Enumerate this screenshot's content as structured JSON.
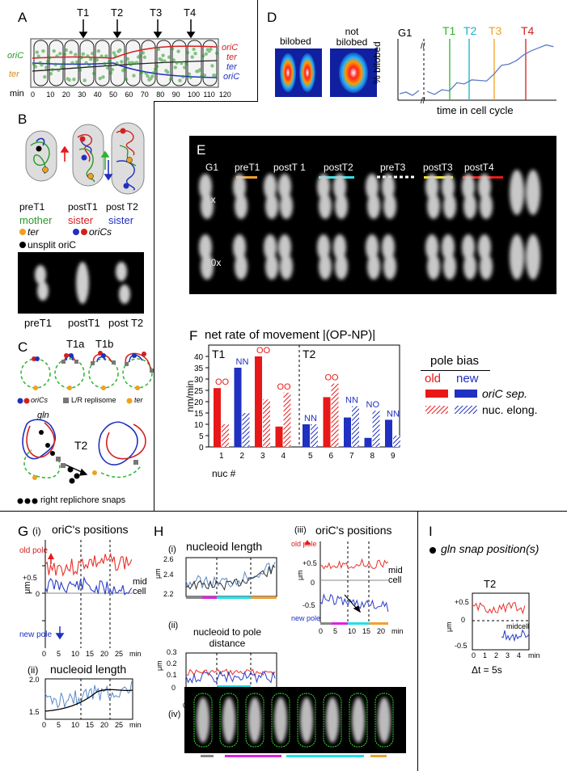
{
  "panels": {
    "A": {
      "label": "A",
      "markers": [
        "T1",
        "T2",
        "T3",
        "T4"
      ],
      "xunit": "min",
      "ticks": [
        "0",
        "10",
        "20",
        "30",
        "40",
        "50",
        "60",
        "70",
        "80",
        "90",
        "100",
        "110",
        "120"
      ],
      "left_labels": [
        "oriC",
        "ter"
      ],
      "right_labels": [
        "oriC",
        "ter",
        "ter",
        "oriC"
      ],
      "colors": {
        "oriC_left": "#2a9a2a",
        "ter_left": "#d88a1a",
        "red": "#d42020",
        "blue": "#2030c0"
      }
    },
    "B": {
      "label": "B",
      "stages": [
        "preT1",
        "postT1",
        "post T2"
      ],
      "legend": {
        "mother": "mother",
        "sister_red": "sister",
        "sister_blue": "sister",
        "ter": "ter",
        "oriCs": "oriCs",
        "unsplit": "unsplit oriC"
      },
      "image_labels": [
        "preT1",
        "postT1",
        "post T2"
      ]
    },
    "C": {
      "label": "C",
      "top_labels": [
        "T1a",
        "T1b"
      ],
      "legend1": {
        "oriCs": "oriCs",
        "replisome": "L/R replisome",
        "ter": "ter"
      },
      "gln": "gln",
      "t2": "T2",
      "legend2": "right replichore snaps"
    },
    "D": {
      "label": "D",
      "img_labels": [
        "bilobed",
        "not bilobed"
      ],
      "markers": [
        "G1",
        "T1",
        "T2",
        "T3",
        "T4"
      ],
      "marker_colors": [
        "#000000",
        "#2db42d",
        "#1ab0c8",
        "#f0a020",
        "#d42020"
      ],
      "ylabel": "% bilobed",
      "xlabel": "time in cell cycle"
    },
    "E": {
      "label": "E",
      "columns": [
        "G1",
        "preT1",
        "postT 1",
        "postT2",
        "preT3",
        "postT3",
        "postT4"
      ],
      "rows": [
        "1x",
        "20x"
      ],
      "bar_colors": [
        "#f0a030",
        "#30e0e8",
        "#ffffff",
        "#f0e020",
        "#e81818"
      ]
    },
    "F": {
      "label": "F",
      "title": "net rate of movement  |(OP-NP)|",
      "ylabel": "nm/min",
      "xlabel": "nuc #",
      "t1": "T1",
      "t2": "T2",
      "legend_title": "pole bias",
      "legend_old": "old",
      "legend_new": "new",
      "legend_row1": "oriC sep.",
      "legend_row2": "nuc. elong.",
      "yticks": [
        "0",
        "5",
        "10",
        "15",
        "20",
        "25",
        "30",
        "35",
        "40"
      ],
      "nucs": [
        "1",
        "2",
        "3",
        "4",
        "5",
        "6",
        "7",
        "8",
        "9"
      ],
      "bias_labels": [
        "OO",
        "NN",
        "OO",
        "OO",
        "NN",
        "OO",
        "NN",
        "NO",
        "NN"
      ]
    },
    "G": {
      "label": "G",
      "i_label": "(i)",
      "i_title": "oriC's  positions",
      "old_pole": "old pole",
      "new_pole": "new pole",
      "mid": "mid",
      "cell": "cell",
      "ylabel": "μm",
      "yticks": [
        "+0.5",
        "0",
        "-0.5"
      ],
      "ii_label": "(ii)",
      "ii_title": "nucleoid  length",
      "ii_yticks": [
        "2.0",
        "1.5"
      ],
      "xticks": [
        "0",
        "5",
        "10",
        "15",
        "20",
        "25"
      ],
      "xunit": "min"
    },
    "H": {
      "label": "H",
      "i_label": "(i)",
      "i_title": "nucleoid  length",
      "i_yticks": [
        "2.6",
        "2.4",
        "2.2"
      ],
      "ii_label": "(ii)",
      "ii_title": "nucleoid to pole distance",
      "ii_yticks": [
        "0.3",
        "0.2",
        "0.1",
        "0"
      ],
      "iii_label": "(iii)",
      "iii_title": "oriC's  positions",
      "old_pole": "old pole",
      "new_pole": "new pole",
      "mid": "mid",
      "cell": "cell",
      "iii_yticks": [
        "+0.5",
        "0",
        "-0.5"
      ],
      "iv_label": "(iv)",
      "ylabel": "μm",
      "xticks": [
        "0",
        "5",
        "10",
        "15",
        "20"
      ],
      "xunit": "min"
    },
    "I": {
      "label": "I",
      "title": "gln  snap position(s)",
      "t2": "T2",
      "midcell": "midcell",
      "yticks": [
        "+0.5",
        "0",
        "-0.5"
      ],
      "xticks": [
        "0",
        "1",
        "2",
        "3",
        "4"
      ],
      "xunit": "min",
      "ylabel": "μm",
      "dt": "Δt = 5s"
    }
  },
  "chart_data": [
    {
      "type": "bar",
      "series": [
        {
          "name": "oriC sep.",
          "values": [
            26,
            35,
            40,
            9,
            10,
            22,
            13,
            4,
            12
          ]
        },
        {
          "name": "nuc. elong.",
          "values": [
            10,
            15,
            21,
            24,
            10,
            28,
            18,
            16,
            5
          ]
        }
      ],
      "categories": [
        "1",
        "2",
        "3",
        "4",
        "5",
        "6",
        "7",
        "8",
        "9"
      ],
      "ylabel": "nm/min",
      "xlabel": "nuc #",
      "ylim": [
        0,
        45
      ],
      "title": "net rate of movement  |(OP-NP)|"
    },
    {
      "type": "line",
      "ylabel": "% bilobed",
      "xlabel": "time in cell cycle",
      "series": [
        {
          "values": [
            15,
            10,
            18,
            16,
            30,
            28,
            35,
            34,
            33,
            45,
            60,
            62,
            68,
            78,
            85,
            90,
            95,
            92
          ]
        }
      ]
    }
  ]
}
